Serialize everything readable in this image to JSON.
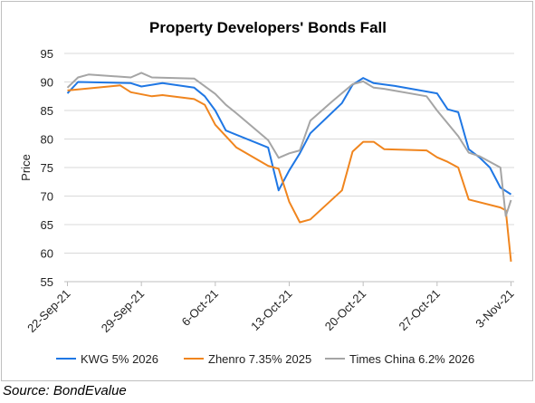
{
  "source_note": "Source: BondEvalue",
  "chart_data": {
    "type": "line",
    "title": "Property Developers' Bonds Fall",
    "xlabel": "",
    "ylabel": "Price",
    "ylim": [
      55,
      95
    ],
    "yticks": [
      55,
      60,
      65,
      70,
      75,
      80,
      85,
      90,
      95
    ],
    "xlim": [
      -0.3,
      42.3
    ],
    "xticks": [
      {
        "x": 0,
        "label": "22-Sep-21"
      },
      {
        "x": 7,
        "label": "29-Sep-21"
      },
      {
        "x": 14,
        "label": "6-Oct-21"
      },
      {
        "x": 21,
        "label": "13-Oct-21"
      },
      {
        "x": 28,
        "label": "20-Oct-21"
      },
      {
        "x": 35,
        "label": "27-Oct-21"
      },
      {
        "x": 42,
        "label": "3-Nov-21"
      }
    ],
    "grid": "horizontal",
    "legend_position": "bottom",
    "series": [
      {
        "name": "KWG 5% 2026",
        "color": "#1f77e4",
        "points": [
          [
            0,
            88.0
          ],
          [
            1,
            90.0
          ],
          [
            6,
            89.8
          ],
          [
            7,
            89.2
          ],
          [
            9,
            89.8
          ],
          [
            12,
            89.0
          ],
          [
            13,
            87.5
          ],
          [
            14,
            85.0
          ],
          [
            15,
            81.5
          ],
          [
            19,
            78.5
          ],
          [
            20,
            71.0
          ],
          [
            21,
            74.5
          ],
          [
            22,
            77.5
          ],
          [
            23,
            81.0
          ],
          [
            26,
            86.3
          ],
          [
            27,
            89.5
          ],
          [
            28,
            90.7
          ],
          [
            29,
            89.8
          ],
          [
            31,
            89.3
          ],
          [
            35,
            88.0
          ],
          [
            36,
            85.2
          ],
          [
            37,
            84.7
          ],
          [
            38,
            78.2
          ],
          [
            39,
            76.8
          ],
          [
            40,
            75.0
          ],
          [
            41,
            71.5
          ],
          [
            42,
            70.3
          ]
        ]
      },
      {
        "name": "Zhenro 7.35% 2025",
        "color": "#f0851e",
        "points": [
          [
            0,
            88.5
          ],
          [
            5,
            89.4
          ],
          [
            6,
            88.2
          ],
          [
            8,
            87.5
          ],
          [
            9,
            87.7
          ],
          [
            12,
            87.0
          ],
          [
            13,
            86.0
          ],
          [
            14,
            82.5
          ],
          [
            16,
            78.5
          ],
          [
            19,
            75.3
          ],
          [
            20,
            74.8
          ],
          [
            21,
            69.0
          ],
          [
            22,
            65.4
          ],
          [
            23,
            65.9
          ],
          [
            26,
            71.0
          ],
          [
            27,
            77.8
          ],
          [
            28,
            79.5
          ],
          [
            29,
            79.5
          ],
          [
            30,
            78.2
          ],
          [
            34,
            78.0
          ],
          [
            35,
            76.8
          ],
          [
            36,
            76.0
          ],
          [
            37,
            75.0
          ],
          [
            38,
            69.4
          ],
          [
            41,
            68.0
          ],
          [
            41.5,
            67.5
          ],
          [
            42,
            58.5
          ]
        ]
      },
      {
        "name": "Times China 6.2% 2026",
        "color": "#a5a5a5",
        "points": [
          [
            0,
            89.0
          ],
          [
            1,
            90.8
          ],
          [
            2,
            91.3
          ],
          [
            6,
            90.8
          ],
          [
            7,
            91.6
          ],
          [
            8,
            90.8
          ],
          [
            12,
            90.6
          ],
          [
            14,
            87.9
          ],
          [
            15,
            86.0
          ],
          [
            16,
            84.5
          ],
          [
            19,
            79.8
          ],
          [
            20,
            76.7
          ],
          [
            21,
            77.5
          ],
          [
            22,
            78.0
          ],
          [
            23,
            83.2
          ],
          [
            25,
            86.5
          ],
          [
            27,
            89.6
          ],
          [
            28,
            90.1
          ],
          [
            29,
            89.0
          ],
          [
            30,
            88.8
          ],
          [
            34,
            87.5
          ],
          [
            35,
            85.0
          ],
          [
            37,
            80.5
          ],
          [
            38,
            77.6
          ],
          [
            39,
            77.0
          ],
          [
            41,
            75.0
          ],
          [
            41.5,
            66.5
          ],
          [
            42,
            69.3
          ]
        ]
      }
    ]
  }
}
